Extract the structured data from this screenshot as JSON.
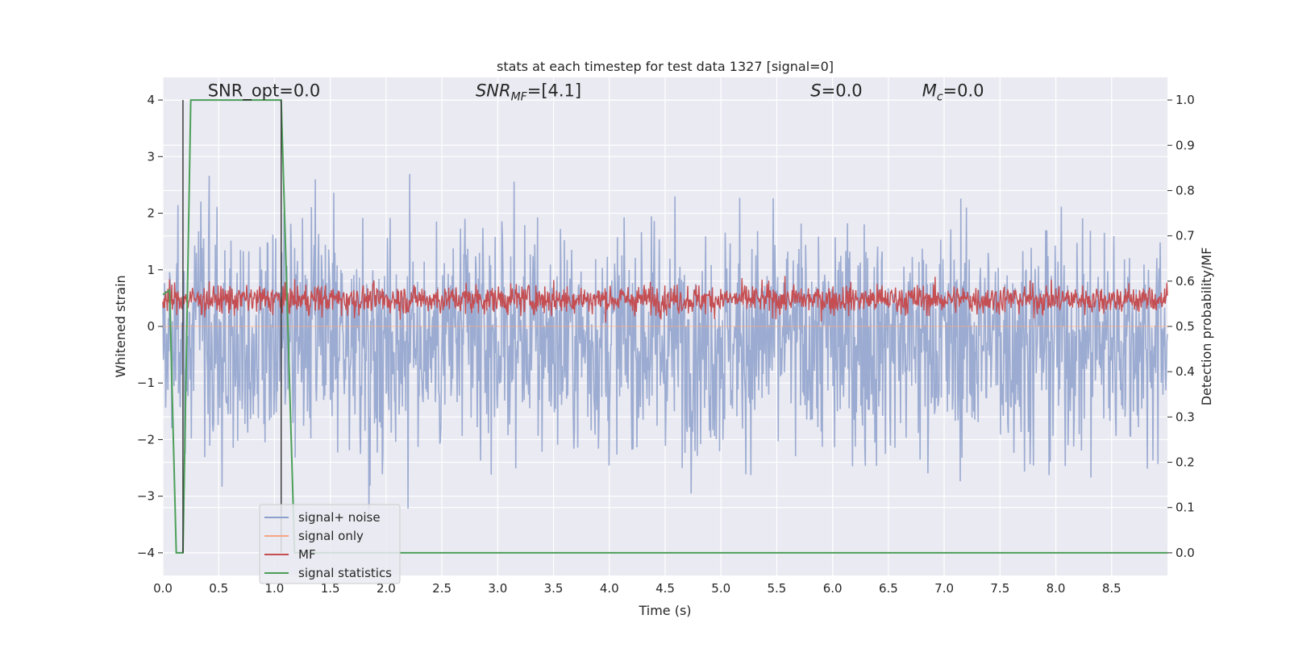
{
  "chart_data": {
    "type": "line",
    "title": "stats at each timestep for test data 1327 [signal=0]",
    "xlabel": "Time (s)",
    "ylabel_left": "Whitened strain",
    "ylabel_right": "Detection probability/MF",
    "xlim": [
      0.0,
      9.0
    ],
    "ylim_left": [
      -4.4,
      4.4
    ],
    "ylim_right": [
      -0.05,
      1.05
    ],
    "xticks": [
      0.0,
      0.5,
      1.0,
      1.5,
      2.0,
      2.5,
      3.0,
      3.5,
      4.0,
      4.5,
      5.0,
      5.5,
      6.0,
      6.5,
      7.0,
      7.5,
      8.0,
      8.5
    ],
    "xtick_labels": [
      "0.0",
      "0.5",
      "1.0",
      "1.5",
      "2.0",
      "2.5",
      "3.0",
      "3.5",
      "4.0",
      "4.5",
      "5.0",
      "5.5",
      "6.0",
      "6.5",
      "7.0",
      "7.5",
      "8.0",
      "8.5"
    ],
    "yticks_left": [
      4,
      3,
      2,
      1,
      0,
      -1,
      -2,
      -3,
      -4
    ],
    "ytick_labels_left": [
      "4",
      "3",
      "2",
      "1",
      "0",
      "−1",
      "−2",
      "−3",
      "−4"
    ],
    "yticks_right": [
      1.0,
      0.9,
      0.8,
      0.7,
      0.6,
      0.5,
      0.4,
      0.3,
      0.2,
      0.1,
      0.0
    ],
    "ytick_labels_right": [
      "1.0",
      "0.9",
      "0.8",
      "0.7",
      "0.6",
      "0.5",
      "0.4",
      "0.3",
      "0.2",
      "0.1",
      "0.0"
    ],
    "grid": true,
    "legend_position": "lower-left",
    "annotations": [
      {
        "text": "SNR_opt=0.0",
        "x": 0.2,
        "y_right": 1.005
      },
      {
        "text": "SNR",
        "sub": "MF",
        "suffix": "=[4.1]",
        "x": 2.6,
        "y_right": 1.005,
        "italic": true
      },
      {
        "text": "S",
        "suffix": "=0.0",
        "x": 5.6,
        "y_right": 1.005,
        "italic": true
      },
      {
        "text": "M",
        "sub": "c",
        "suffix": "=0.0",
        "x": 6.6,
        "y_right": 1.005,
        "italic": true
      }
    ],
    "marker_lines": [
      {
        "x": 0.18,
        "y_from": -4.0,
        "y_to": 4.0,
        "color": "#333333"
      },
      {
        "x": 1.06,
        "y_from": -4.0,
        "y_to": 4.0,
        "color": "#333333"
      }
    ],
    "series": [
      {
        "name": "signal+ noise",
        "axis": "left",
        "color": "#8da0cb",
        "kind": "noise",
        "n_points": 1800,
        "range_approx": [
          -3.9,
          3.4
        ]
      },
      {
        "name": "signal only",
        "axis": "left",
        "color": "#f4a582",
        "kind": "flat",
        "values": [
          0.0
        ]
      },
      {
        "name": "MF",
        "axis": "right",
        "color": "#c44e52",
        "kind": "noise",
        "n_points": 1800,
        "range_approx": [
          0.5,
          0.62
        ]
      },
      {
        "name": "signal statistics",
        "axis": "right",
        "color": "#4c9f59",
        "kind": "polyline",
        "x": [
          0.0,
          0.06,
          0.12,
          0.18,
          0.25,
          1.06,
          1.12,
          1.18,
          1.25,
          9.0
        ],
        "y": [
          0.57,
          0.58,
          0.0,
          0.0,
          1.0,
          1.0,
          0.5,
          0.0,
          0.0,
          0.0
        ]
      }
    ],
    "legend": [
      {
        "label": "signal+ noise",
        "color": "#8da0cb"
      },
      {
        "label": "signal only",
        "color": "#f4a582"
      },
      {
        "label": "MF",
        "color": "#c44e52"
      },
      {
        "label": "signal statistics",
        "color": "#4c9f59"
      }
    ]
  }
}
